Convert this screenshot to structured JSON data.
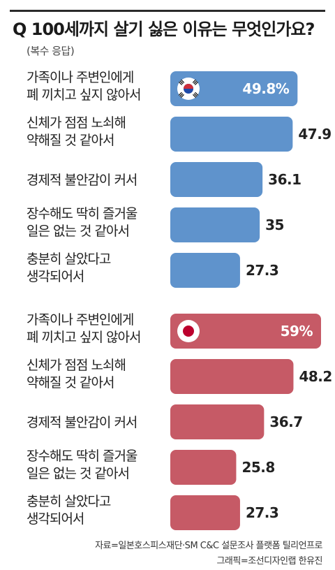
{
  "title": "Q 100세까지 살기 싫은 이유는 무엇인가요?",
  "subtitle": "(복수 응답)",
  "source_line1": "자료=일본호스피스재단·SM C&C 설문조사 플랫폼 틸리언프로",
  "source_line2": "그래픽=조선디자인랩 한유진",
  "colors": {
    "korea": "#5f93cc",
    "japan": "#c65a66"
  },
  "chart_data": {
    "type": "bar",
    "orientation": "horizontal",
    "categories": [
      "가족이나 주변인에게 폐 끼치고 싶지 않아서",
      "신체가 점점 노쇠해 약해질 것 같아서",
      "경제적 불안감이 커서",
      "장수해도 딱히 즐거울 일은 없는 것 같아서",
      "충분히 살았다고 생각되어서"
    ],
    "groups": [
      {
        "flag": "korea-flag-icon",
        "value_labels": [
          "49.8%",
          "47.9",
          "36.1",
          "35",
          "27.3"
        ],
        "values": [
          49.8,
          47.9,
          36.1,
          35,
          27.3
        ],
        "label_lines": [
          [
            "가족이나 주변인에게",
            "폐 끼치고 싶지 않아서"
          ],
          [
            "신체가 점점 노쇠해",
            "약해질 것 같아서"
          ],
          [
            "경제적 불안감이 커서"
          ],
          [
            "장수해도 딱히 즐거울",
            "일은 없는 것 같아서"
          ],
          [
            "충분히 살았다고",
            "생각되어서"
          ]
        ]
      },
      {
        "flag": "japan-flag-icon",
        "value_labels": [
          "59%",
          "48.2",
          "36.7",
          "25.8",
          "27.3"
        ],
        "values": [
          59,
          48.2,
          36.7,
          25.8,
          27.3
        ],
        "label_lines": [
          [
            "가족이나 주변인에게",
            "폐 끼치고 싶지 않아서"
          ],
          [
            "신체가 점점 노쇠해",
            "약해질 것 같아서"
          ],
          [
            "경제적 불안감이 커서"
          ],
          [
            "장수해도 딱히 즐거울",
            "일은 없는 것 같아서"
          ],
          [
            "충분히 살았다고",
            "생각되어서"
          ]
        ]
      }
    ],
    "xlim": [
      0,
      59
    ],
    "grid": false
  }
}
